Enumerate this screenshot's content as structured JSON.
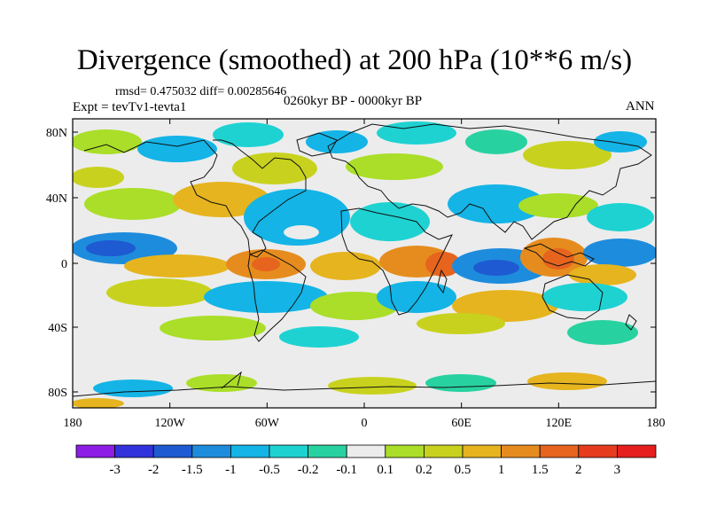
{
  "title": "Divergence (smoothed) at 200 hPa (10**6 m/s)",
  "stats": "rmsd= 0.475032 diff= 0.00285646",
  "experiment": "Expt = tevTv1-tevta1",
  "period": "0260kyr BP - 0000kyr BP",
  "season": "ANN",
  "lat_ticks": [
    "80N",
    "40N",
    "0",
    "40S",
    "80S"
  ],
  "lon_ticks": [
    "180",
    "120W",
    "60W",
    "0",
    "60E",
    "120E",
    "180"
  ],
  "colorbar": {
    "labels": [
      "-3",
      "-2",
      "-1.5",
      "-1",
      "-0.5",
      "-0.2",
      "-0.1",
      "0.1",
      "0.2",
      "0.5",
      "1",
      "1.5",
      "2",
      "3"
    ],
    "colors": [
      "#8c1ee6",
      "#3232dc",
      "#1e5ad2",
      "#1e8cdc",
      "#14b4e6",
      "#1ed2d2",
      "#28d2a0",
      "#ececec",
      "#aade28",
      "#c8d21e",
      "#e6b41e",
      "#e68c1e",
      "#e6641e",
      "#e63c1e",
      "#e61e1e"
    ]
  },
  "palette": {
    "neutral": "#ececec",
    "pos_light": "#aade28",
    "pos_mid": "#c8d21e",
    "pos_warm": "#e6b41e",
    "pos_orange": "#e68c1e",
    "pos_red": "#e6641e",
    "neg_light": "#28d2a0",
    "neg_cyan": "#1ed2d2",
    "neg_sky": "#14b4e6",
    "neg_blue": "#1e8cdc",
    "neg_dark": "#1e5ad2"
  }
}
